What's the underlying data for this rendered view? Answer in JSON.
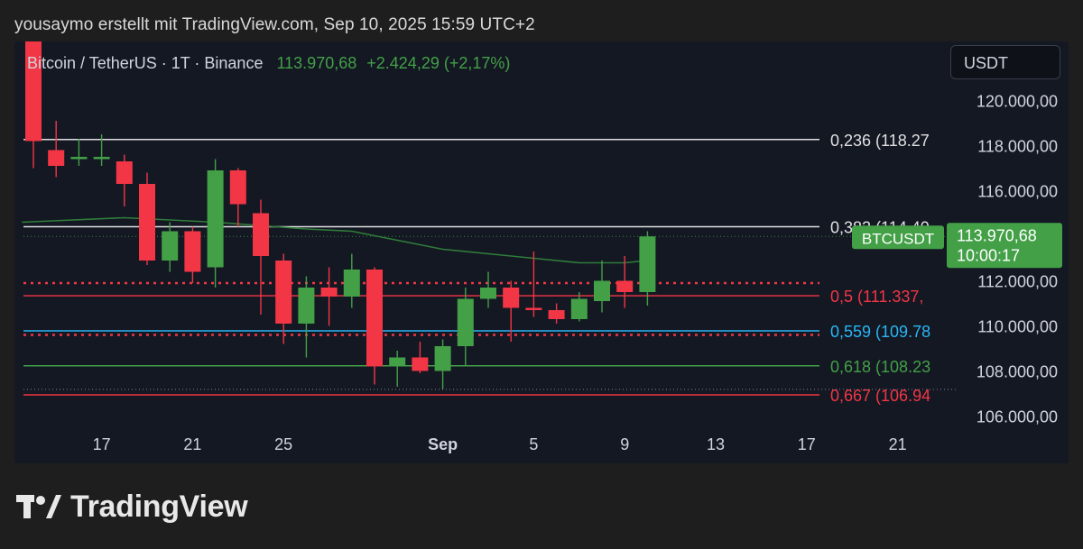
{
  "header": {
    "attribution": "yousaymo erstellt mit TradingView.com, Sep 10, 2025 15:59 UTC+2"
  },
  "legend": {
    "symbol": "Bitcoin / TetherUS · 1T · Binance",
    "price": "113.970,68",
    "change": "+2.424,29 (+2,17%)"
  },
  "currency_button": "USDT",
  "price_badge": {
    "symbol": "BTCUSDT",
    "price": "113.970,68",
    "countdown": "10:00:17"
  },
  "footer": {
    "brand": "TradingView"
  },
  "chart_data": {
    "type": "candlestick",
    "x_tick_labels": [
      {
        "label": "17",
        "index": 3
      },
      {
        "label": "21",
        "index": 7
      },
      {
        "label": "25",
        "index": 11
      },
      {
        "label": "Sep",
        "index": 18
      },
      {
        "label": "5",
        "index": 22
      },
      {
        "label": "9",
        "index": 26
      },
      {
        "label": "13",
        "index": 30
      },
      {
        "label": "17",
        "index": 34
      },
      {
        "label": "21",
        "index": 38
      }
    ],
    "y_tick_labels": [
      {
        "value": 120000,
        "label": "120.000,00"
      },
      {
        "value": 118000,
        "label": "118.000,00"
      },
      {
        "value": 116000,
        "label": "116.000,00"
      },
      {
        "value": 112000,
        "label": "112.000,00"
      },
      {
        "value": 110000,
        "label": "110.000,00"
      },
      {
        "value": 108000,
        "label": "108.000,00"
      },
      {
        "value": 106000,
        "label": "106.000,00"
      }
    ],
    "candles": [
      {
        "o": 123000,
        "h": 124500,
        "l": 117000,
        "c": 118200
      },
      {
        "o": 117800,
        "h": 119100,
        "l": 116600,
        "c": 117100
      },
      {
        "o": 117400,
        "h": 118300,
        "l": 117100,
        "c": 117500
      },
      {
        "o": 117400,
        "h": 118500,
        "l": 117100,
        "c": 117500
      },
      {
        "o": 117300,
        "h": 117600,
        "l": 115300,
        "c": 116300
      },
      {
        "o": 116300,
        "h": 116800,
        "l": 112700,
        "c": 112900
      },
      {
        "o": 112900,
        "h": 114600,
        "l": 112400,
        "c": 114200
      },
      {
        "o": 114200,
        "h": 114400,
        "l": 111900,
        "c": 112400
      },
      {
        "o": 112600,
        "h": 117400,
        "l": 111700,
        "c": 116900
      },
      {
        "o": 116900,
        "h": 117000,
        "l": 114400,
        "c": 115400
      },
      {
        "o": 115000,
        "h": 115600,
        "l": 110500,
        "c": 113100
      },
      {
        "o": 112900,
        "h": 113200,
        "l": 109200,
        "c": 110100
      },
      {
        "o": 110100,
        "h": 112200,
        "l": 108600,
        "c": 111700
      },
      {
        "o": 111700,
        "h": 112600,
        "l": 110000,
        "c": 111300
      },
      {
        "o": 111300,
        "h": 113200,
        "l": 110800,
        "c": 112500
      },
      {
        "o": 112500,
        "h": 112600,
        "l": 107400,
        "c": 108200
      },
      {
        "o": 108200,
        "h": 108900,
        "l": 107300,
        "c": 108600
      },
      {
        "o": 108600,
        "h": 109300,
        "l": 107900,
        "c": 108000
      },
      {
        "o": 108000,
        "h": 109400,
        "l": 107200,
        "c": 109100
      },
      {
        "o": 109100,
        "h": 111700,
        "l": 108200,
        "c": 111200
      },
      {
        "o": 111200,
        "h": 112400,
        "l": 110800,
        "c": 111700
      },
      {
        "o": 111700,
        "h": 112000,
        "l": 109300,
        "c": 110800
      },
      {
        "o": 110800,
        "h": 113300,
        "l": 110400,
        "c": 110700
      },
      {
        "o": 110700,
        "h": 111000,
        "l": 110100,
        "c": 110300
      },
      {
        "o": 110300,
        "h": 111500,
        "l": 110200,
        "c": 111200
      },
      {
        "o": 111100,
        "h": 112900,
        "l": 110600,
        "c": 112000
      },
      {
        "o": 112000,
        "h": 113100,
        "l": 110800,
        "c": 111500
      },
      {
        "o": 111500,
        "h": 114200,
        "l": 110900,
        "c": 113970
      }
    ],
    "moving_average": [
      {
        "index": -0.5,
        "value": 114600
      },
      {
        "index": 4,
        "value": 114800
      },
      {
        "index": 8,
        "value": 114600
      },
      {
        "index": 12,
        "value": 114300
      },
      {
        "index": 14,
        "value": 114200
      },
      {
        "index": 16,
        "value": 113800
      },
      {
        "index": 18,
        "value": 113400
      },
      {
        "index": 20,
        "value": 113200
      },
      {
        "index": 22,
        "value": 113000
      },
      {
        "index": 24,
        "value": 112800
      },
      {
        "index": 26,
        "value": 112800
      },
      {
        "index": 27,
        "value": 112900
      }
    ],
    "horizontal_levels": [
      {
        "label": "0,236 (118.27",
        "value": 118270,
        "color": "#e0e0e0",
        "style": "solid"
      },
      {
        "label": "0,382 (114.40",
        "value": 114400,
        "color": "#e0e0e0",
        "style": "solid"
      },
      {
        "label": "0,5 (111.337,",
        "value": 111337,
        "color": "#f23645",
        "style": "solid"
      },
      {
        "label": "0,559 (109.78",
        "value": 109780,
        "color": "#29b6f6",
        "style": "solid"
      },
      {
        "label": "0,618 (108.23",
        "value": 108230,
        "color": "#43a047",
        "style": "solid"
      },
      {
        "label": "0,667 (106.94",
        "value": 106940,
        "color": "#f23645",
        "style": "solid"
      },
      {
        "value": 111900,
        "color": "#f23645",
        "style": "dotted"
      },
      {
        "value": 109600,
        "color": "#f23645",
        "style": "dotted"
      },
      {
        "value": 113970,
        "color": "#43a047",
        "style": "faint-dotted"
      },
      {
        "value": 107180,
        "color": "#9aa0aa",
        "style": "faint-dotted"
      }
    ],
    "colors": {
      "up": "#43a047",
      "down": "#f23645",
      "ma": "#2f7d3a"
    },
    "xlabel": "",
    "ylabel": ""
  }
}
